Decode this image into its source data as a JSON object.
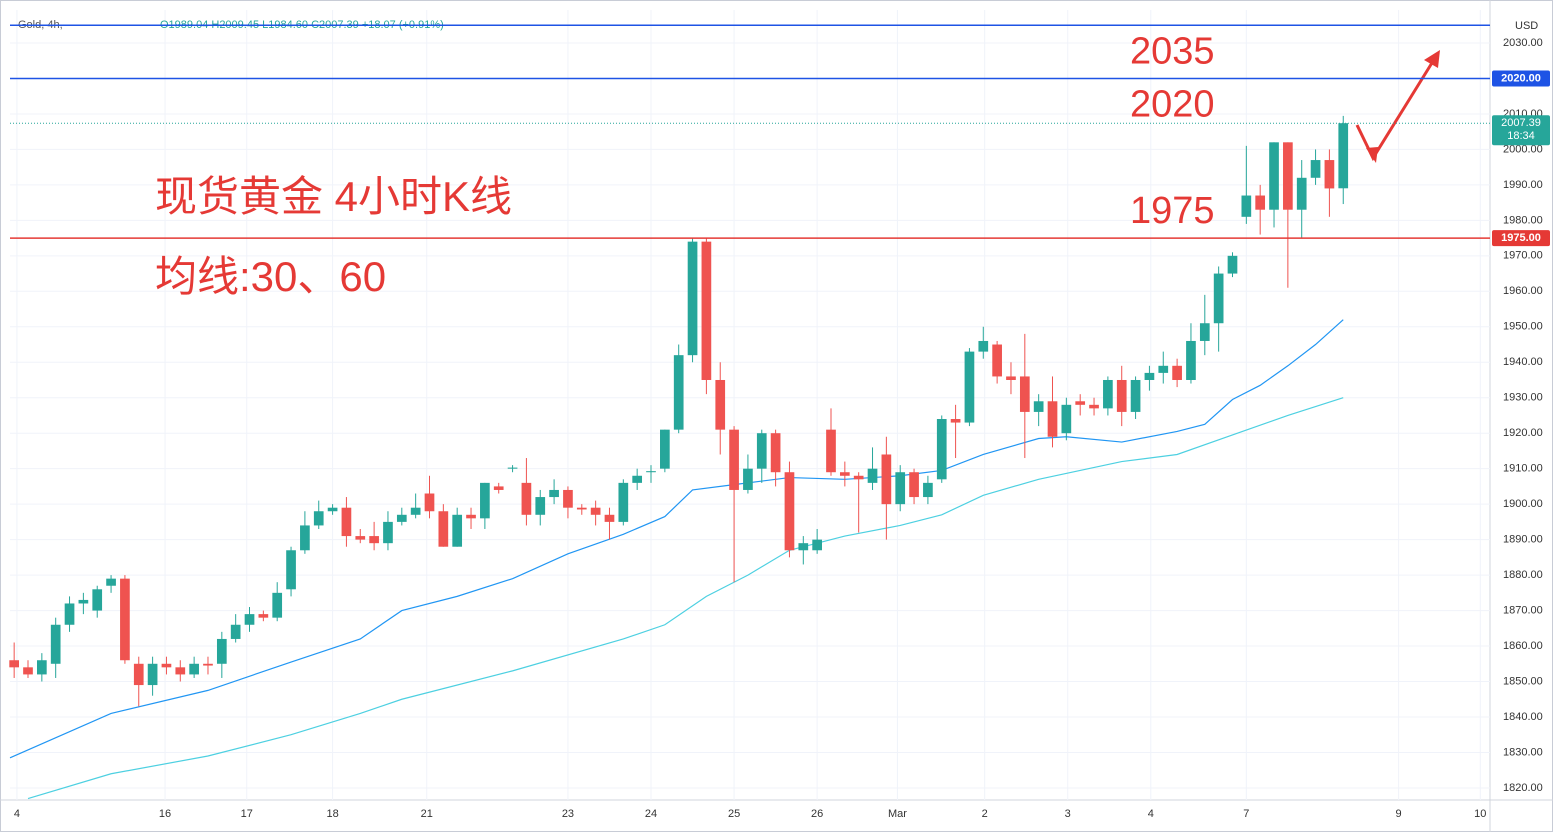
{
  "chart_data": {
    "type": "candlestick",
    "symbol": "Gold, 4h,",
    "ohlc_header": "O1989.04 H2009.45 L1984.60 C2007.39 +18.07 (+0.91%)",
    "currency": "USD",
    "annotations": [
      "现货黄金 4小时K线",
      "均线:30、60"
    ],
    "up_color": "#26a69a",
    "down_color": "#ef5350",
    "xlim": [
      -0.3,
      106.6
    ],
    "ylim": [
      1816.6,
      2039.3
    ],
    "xticks": [
      {
        "value": 0.2,
        "label": "4"
      },
      {
        "value": 10.9,
        "label": "16"
      },
      {
        "value": 16.8,
        "label": "17"
      },
      {
        "value": 23,
        "label": "18"
      },
      {
        "value": 29.8,
        "label": "21"
      },
      {
        "value": 40,
        "label": "23"
      },
      {
        "value": 46,
        "label": "24"
      },
      {
        "value": 52,
        "label": "25"
      },
      {
        "value": 58,
        "label": "26"
      },
      {
        "value": 63.8,
        "label": "Mar"
      },
      {
        "value": 70.1,
        "label": "2"
      },
      {
        "value": 76.1,
        "label": "3"
      },
      {
        "value": 82.1,
        "label": "4"
      },
      {
        "value": 89,
        "label": "7"
      },
      {
        "value": 100,
        "label": "9"
      },
      {
        "value": 105.9,
        "label": "10"
      }
    ],
    "yticks": [
      {
        "value": 1820,
        "label": "1820.00"
      },
      {
        "value": 1830,
        "label": "1830.00"
      },
      {
        "value": 1840,
        "label": "1840.00"
      },
      {
        "value": 1850,
        "label": "1850.00"
      },
      {
        "value": 1860,
        "label": "1860.00"
      },
      {
        "value": 1870,
        "label": "1870.00"
      },
      {
        "value": 1880,
        "label": "1880.00"
      },
      {
        "value": 1890,
        "label": "1890.00"
      },
      {
        "value": 1900,
        "label": "1900.00"
      },
      {
        "value": 1910,
        "label": "1910.00"
      },
      {
        "value": 1920,
        "label": "1920.00"
      },
      {
        "value": 1930,
        "label": "1930.00"
      },
      {
        "value": 1940,
        "label": "1940.00"
      },
      {
        "value": 1950,
        "label": "1950.00"
      },
      {
        "value": 1960,
        "label": "1960.00"
      },
      {
        "value": 1970,
        "label": "1970.00"
      },
      {
        "value": 1980,
        "label": "1980.00"
      },
      {
        "value": 1990,
        "label": "1990.00"
      },
      {
        "value": 2000,
        "label": "2000.00"
      },
      {
        "value": 2010,
        "label": "2010.00"
      },
      {
        "value": 2030,
        "label": "2030.00"
      }
    ],
    "levels": [
      {
        "value": 2035,
        "label": "2035",
        "color": "#1e53e5"
      },
      {
        "value": 2020,
        "label": "2020",
        "tag": "2020.00",
        "color": "#1e53e5"
      },
      {
        "value": 1975,
        "label": "1975",
        "tag": "1975.00",
        "color": "#e53935"
      }
    ],
    "last": {
      "value": 2007.39,
      "label": "2007.39",
      "countdown": "18:34"
    },
    "x": [
      0,
      1,
      2,
      3,
      4,
      5,
      6,
      7,
      8,
      9,
      10,
      11,
      12,
      13,
      14,
      15,
      16,
      17,
      18,
      19,
      20,
      21,
      22,
      23,
      24,
      25,
      26,
      27,
      28,
      29,
      30,
      31,
      32,
      33,
      34,
      35,
      36,
      37,
      38,
      39,
      40,
      41,
      42,
      43,
      44,
      45,
      46,
      47,
      48,
      49,
      50,
      51,
      52,
      53,
      54,
      55,
      56,
      57,
      58,
      59,
      60,
      61,
      62,
      63,
      64,
      65,
      66,
      67,
      68,
      69,
      70,
      71,
      72,
      73,
      74,
      75,
      76,
      77,
      78,
      79,
      80,
      81,
      82,
      83,
      84,
      85,
      86,
      87,
      88,
      89,
      90,
      91,
      92,
      93,
      94,
      95,
      96
    ],
    "open": [
      1856,
      1854,
      1852,
      1855,
      1866,
      1872,
      1870,
      1877,
      1879,
      1855,
      1849,
      1855,
      1854,
      1852,
      1855,
      1855,
      1862,
      1866,
      1869,
      1868,
      1876,
      1887,
      1894,
      1898,
      1899,
      1891,
      1891,
      1889,
      1895,
      1897,
      1903,
      1898,
      1888,
      1897,
      1896,
      1905,
      1910,
      1906,
      1897,
      1902,
      1904,
      1899,
      1899,
      1897,
      1895,
      1906,
      1909,
      1910,
      1921,
      1942,
      1974,
      1935,
      1921,
      1904,
      1910,
      1920,
      1909,
      1887,
      1887,
      1921,
      1909,
      1908,
      1906,
      1914,
      1900,
      1909,
      1902,
      1907,
      1924,
      1923,
      1943,
      1945,
      1936,
      1936,
      1926,
      1929,
      1920,
      1929,
      1928,
      1927,
      1935,
      1926,
      1935,
      1937,
      1939,
      1935,
      1946,
      1951,
      1965,
      1981,
      1987,
      1983,
      2002,
      1983,
      1992,
      1997,
      1989.04
    ],
    "high": [
      1861,
      1856,
      1858,
      1868,
      1874,
      1875,
      1877,
      1880,
      1880,
      1857,
      1857,
      1857,
      1856,
      1857,
      1857,
      1864,
      1869,
      1871,
      1870,
      1878,
      1888,
      1898,
      1901,
      1900,
      1902,
      1893,
      1895,
      1898,
      1899,
      1903,
      1908,
      1900,
      1899,
      1899,
      1906,
      1906,
      1911,
      1913,
      1904,
      1907,
      1905,
      1900,
      1901,
      1899,
      1907,
      1910,
      1911,
      1921,
      1945,
      1975,
      1975,
      1940,
      1922,
      1914,
      1921,
      1921,
      1912,
      1891,
      1893,
      1927,
      1912,
      1909,
      1916,
      1919,
      1911,
      1910,
      1908,
      1925,
      1928,
      1944,
      1950,
      1946,
      1940,
      1948,
      1931,
      1936,
      1930,
      1931,
      1930,
      1936,
      1939,
      1936,
      1939,
      1943,
      1941,
      1951,
      1959,
      1967,
      1971,
      2001,
      1990,
      2002,
      2002,
      1997,
      2000,
      2000,
      2009.45
    ],
    "low": [
      1851,
      1851,
      1850,
      1851,
      1864,
      1869,
      1868,
      1875,
      1855,
      1843,
      1846,
      1852,
      1850,
      1851,
      1852,
      1851,
      1861,
      1864,
      1867,
      1867,
      1874,
      1886,
      1893,
      1897,
      1888,
      1889,
      1887,
      1887,
      1894,
      1896,
      1896,
      1888,
      1888,
      1893,
      1893,
      1903,
      1909,
      1894,
      1894,
      1900,
      1896,
      1897,
      1894,
      1890,
      1894,
      1904,
      1906,
      1909,
      1920,
      1940,
      1931,
      1914,
      1878,
      1903,
      1906,
      1905,
      1885,
      1883,
      1886,
      1908,
      1905,
      1892,
      1904,
      1890,
      1898,
      1900,
      1900,
      1906,
      1913,
      1922,
      1941,
      1934,
      1931,
      1913,
      1922,
      1916,
      1918,
      1925,
      1925,
      1925,
      1922,
      1924,
      1932,
      1934,
      1933,
      1934,
      1942,
      1943,
      1964,
      1979,
      1976,
      1978,
      1961,
      1975,
      1990,
      1981,
      1984.6
    ],
    "close": [
      1854,
      1852,
      1856,
      1866,
      1872,
      1873,
      1876,
      1879,
      1856,
      1849,
      1855,
      1854,
      1852,
      1855,
      1854.5,
      1862,
      1866,
      1869,
      1868,
      1875,
      1887,
      1894,
      1898,
      1899,
      1891,
      1890,
      1889,
      1895,
      1897,
      1899,
      1898,
      1888,
      1897,
      1896,
      1906,
      1904,
      1910.3,
      1897,
      1902,
      1904,
      1899,
      1898.5,
      1897,
      1895,
      1906,
      1908,
      1909.3,
      1921,
      1942,
      1974,
      1935,
      1921,
      1904,
      1910,
      1920,
      1909,
      1887,
      1889,
      1890,
      1909,
      1908,
      1907,
      1910,
      1900,
      1909,
      1902,
      1906,
      1924,
      1923,
      1943,
      1946,
      1936,
      1935,
      1926,
      1929,
      1919,
      1928,
      1928,
      1927,
      1935,
      1926,
      1935,
      1937,
      1939,
      1935,
      1946,
      1951,
      1965,
      1970,
      1987,
      1983,
      2002,
      1983,
      1992,
      1997,
      1989,
      2007.39
    ],
    "overlays": [
      {
        "color": "#2196f3",
        "x": [
          -0.3,
          7,
          14,
          20,
          25,
          28,
          32,
          36,
          40,
          44,
          47,
          49,
          52,
          56,
          60,
          64,
          67,
          70,
          74,
          76,
          80,
          84,
          86,
          88,
          90,
          92,
          94,
          96
        ],
        "values": [
          1828.5,
          1841,
          1847.5,
          1855.5,
          1862,
          1870,
          1874,
          1879,
          1886,
          1891.5,
          1896.5,
          1904,
          1905.5,
          1907.5,
          1907,
          1908,
          1909.5,
          1914,
          1918.5,
          1919,
          1917.5,
          1920.5,
          1922.5,
          1929.5,
          1933.5,
          1939,
          1945,
          1952
        ]
      },
      {
        "color": "#4dd0e1",
        "x": [
          1,
          7,
          14,
          20,
          25,
          28,
          36,
          44,
          47,
          50,
          53,
          56,
          60,
          64,
          67,
          70,
          74,
          80,
          84,
          88,
          92,
          96
        ],
        "values": [
          1817,
          1824,
          1829,
          1835,
          1841,
          1845,
          1853,
          1862,
          1866,
          1874,
          1880,
          1887,
          1891,
          1894,
          1897,
          1902.5,
          1907,
          1912,
          1914,
          1919.5,
          1925,
          1930
        ]
      }
    ]
  }
}
